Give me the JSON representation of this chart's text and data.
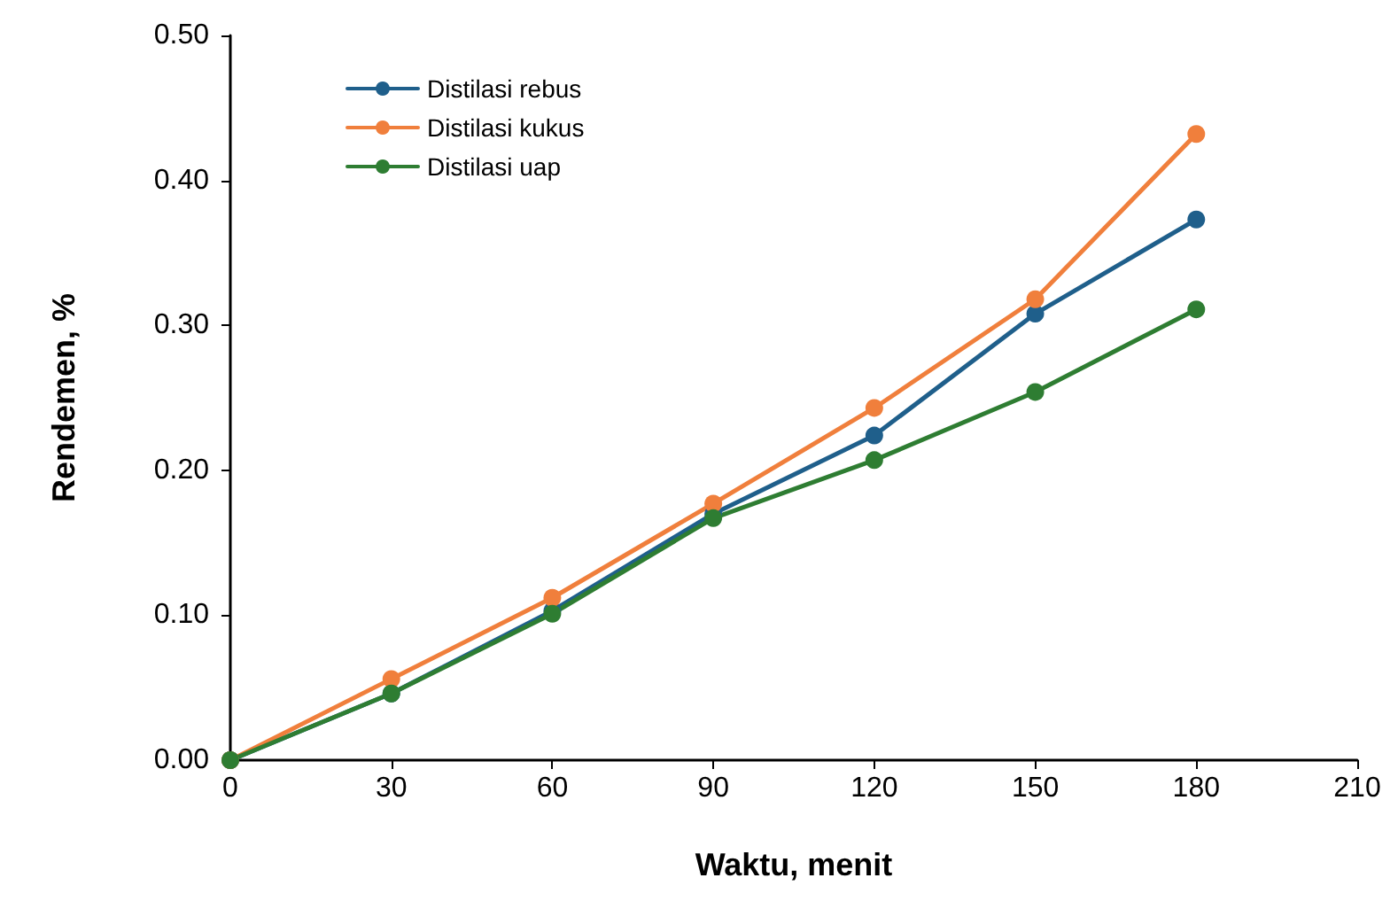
{
  "chart_data": {
    "type": "line",
    "xlabel": "Waktu, menit",
    "ylabel": "Rendemen, %",
    "x": [
      0,
      30,
      60,
      90,
      120,
      150,
      180
    ],
    "series": [
      {
        "name": "Distilasi rebus",
        "color": "#1f5f8b",
        "values": [
          0,
          0.046,
          0.103,
          0.17,
          0.224,
          0.308,
          0.373
        ]
      },
      {
        "name": "Distilasi kukus",
        "color": "#f07f3c",
        "values": [
          0,
          0.056,
          0.112,
          0.177,
          0.243,
          0.318,
          0.432
        ]
      },
      {
        "name": "Distilasi uap",
        "color": "#2e7d32",
        "values": [
          0,
          0.046,
          0.101,
          0.167,
          0.207,
          0.254,
          0.311
        ]
      }
    ],
    "xlim": [
      0,
      210
    ],
    "xticks": [
      0,
      30,
      60,
      90,
      120,
      150,
      180,
      210
    ],
    "ylim": [
      0,
      0.5
    ],
    "yticks": [
      {
        "value": 0,
        "label": "0.00"
      },
      {
        "value": 0.1,
        "label": "0.10"
      },
      {
        "value": 0.2,
        "label": "0.20"
      },
      {
        "value": 0.3,
        "label": "0.30"
      },
      {
        "value": 0.4,
        "label": "0.40"
      },
      {
        "value": 0.5,
        "label": "0.50"
      }
    ],
    "grid": false,
    "legend": "top left",
    "marker": "circle",
    "line_style": "solid"
  }
}
